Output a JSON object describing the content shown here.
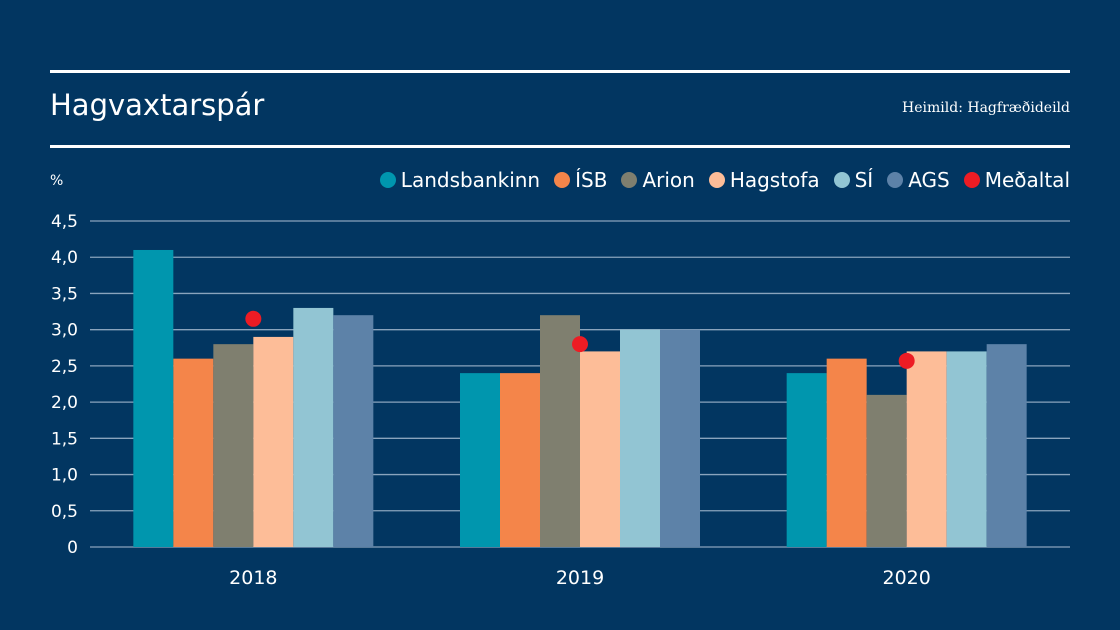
{
  "header": {
    "title": "Hagvaxtarspár",
    "source": "Heimild: Hagfræðideild",
    "unit": "%"
  },
  "colors": {
    "background": "#023661",
    "grid": "#8aa4bd",
    "text": "#ffffff"
  },
  "chart_data": {
    "type": "bar",
    "title": "Hagvaxtarspár",
    "xlabel": "",
    "ylabel": "%",
    "ylim": [
      0,
      4.5
    ],
    "yticks": [
      0,
      0.5,
      1.0,
      1.5,
      2.0,
      2.5,
      3.0,
      3.5,
      4.0,
      4.5
    ],
    "ytick_labels": [
      "0",
      "0,5",
      "1,0",
      "1,5",
      "2,0",
      "2,5",
      "3,0",
      "3,5",
      "4,0",
      "4,5"
    ],
    "grid": true,
    "legend_position": "top-right",
    "categories": [
      "2018",
      "2019",
      "2020"
    ],
    "series": [
      {
        "name": "Landsbankinn",
        "color": "#0096ae",
        "values": [
          4.1,
          2.4,
          2.4
        ]
      },
      {
        "name": "ÍSB",
        "color": "#f4854a",
        "values": [
          2.6,
          2.4,
          2.6
        ]
      },
      {
        "name": "Arion",
        "color": "#7f7f6f",
        "values": [
          2.8,
          3.2,
          2.1
        ]
      },
      {
        "name": "Hagstofa",
        "color": "#fdbd98",
        "values": [
          2.9,
          2.7,
          2.7
        ]
      },
      {
        "name": "SÍ",
        "color": "#92c5d3",
        "values": [
          3.3,
          3.0,
          2.7
        ]
      },
      {
        "name": "AGS",
        "color": "#5d82a8",
        "values": [
          3.2,
          3.0,
          2.8
        ]
      }
    ],
    "average": {
      "name": "Meðaltal",
      "color": "#ed1c24",
      "type": "scatter",
      "values": [
        3.15,
        2.8,
        2.57
      ]
    }
  }
}
